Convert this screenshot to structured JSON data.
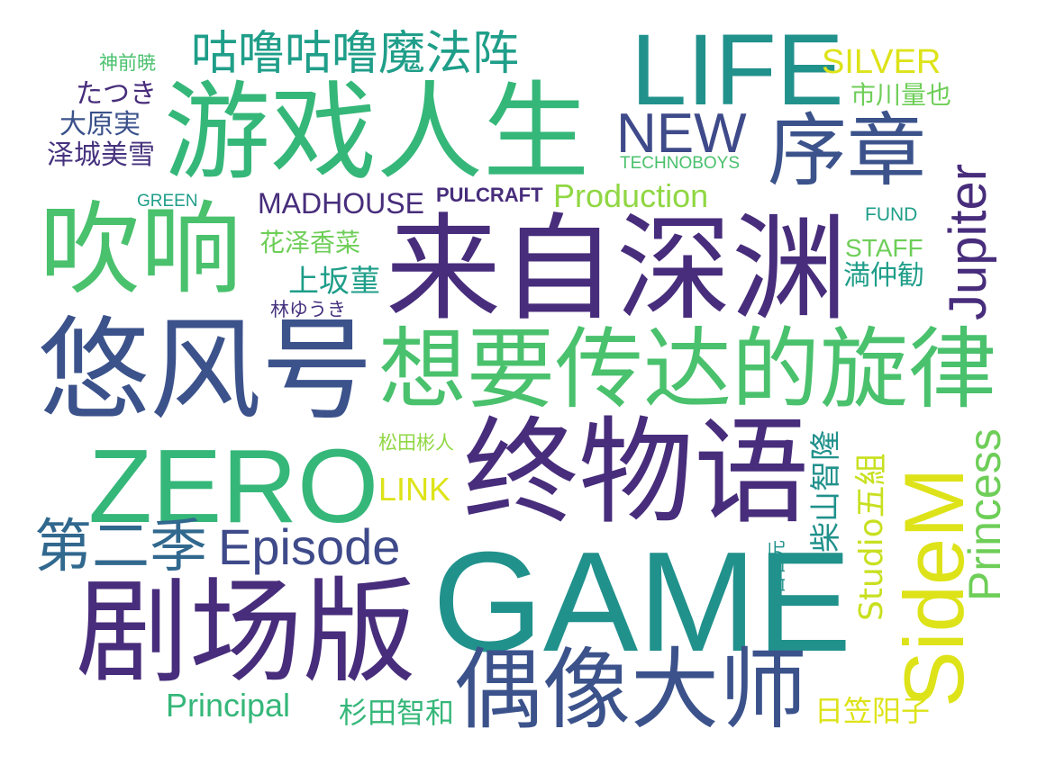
{
  "words": {
    "game": "GAME",
    "life": "LIFE",
    "zero": "ZERO",
    "sidem": "SideM",
    "youxirensheng": "游戏人生",
    "laizishenyuan": "来自深渊",
    "zhongwuyu": "终物语",
    "juchangban": "剧场版",
    "youfenghao": "悠风号",
    "chuixiang": "吹响",
    "xiangyao": "想要传达的旋律",
    "ouxiangdashi": "偶像大师",
    "xuzhang": "序章",
    "diersji": "第二季",
    "gulu": "咕噜咕噜魔法阵",
    "episode": "Episode",
    "new": "NEW",
    "jupiter": "Jupiter",
    "princess": "Princess",
    "production": "Production",
    "principal": "Principal",
    "madhouse": "MADHOUSE",
    "pulcraft": "PULCRAFT",
    "silver": "SILVER",
    "technoboys": "TECHNOBOYS",
    "green": "GREEN",
    "fund": "FUND",
    "staff": "STAFF",
    "link": "LINK",
    "studio_gokumi": "Studio五組",
    "shibayama": "柴山智隆",
    "ichikawa": "市川量也",
    "tatsuki": "たつき",
    "oharaminoru": "大原実",
    "sawashiro": "泽城美雪",
    "kamimae": "神前暁",
    "hanazawa": "花泽香菜",
    "uesaka": "上坂菫",
    "hayashi": "林ゆうき",
    "mitsunaka": "満仲勧",
    "matsuda": "松田彬人",
    "sugita": "杉田智和",
    "hikasa": "日笠阳子",
    "hyakuishi": "百石元"
  },
  "colors": {
    "dark_purple": "#472d7b",
    "purple": "#46327e",
    "navy": "#3b528b",
    "blue": "#3e4a89",
    "teal": "#21918c",
    "green": "#35b779",
    "light_green": "#6ece58",
    "yellow": "#dde318"
  }
}
